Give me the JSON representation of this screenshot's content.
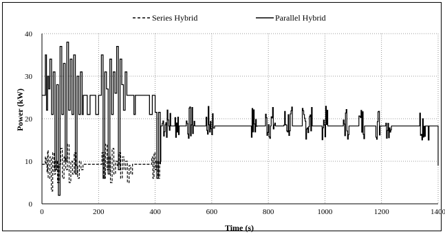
{
  "chart_data": {
    "type": "line",
    "title": "",
    "xlabel": "Time (s)",
    "ylabel": "Power (kW)",
    "xlim": [
      0,
      1400
    ],
    "ylim": [
      0,
      40
    ],
    "x_ticks": [
      0,
      200,
      400,
      600,
      800,
      1000,
      1200,
      1400
    ],
    "y_ticks": [
      0,
      10,
      20,
      30,
      40
    ],
    "grid": true,
    "grid_style": "dotted",
    "legend_position": "top-center",
    "series": [
      {
        "name": "Series Hybrid",
        "style": "dashed",
        "color": "#000000",
        "x": [
          0,
          10,
          12,
          15,
          18,
          20,
          22,
          28,
          33,
          38,
          43,
          48,
          55,
          60,
          66,
          72,
          78,
          84,
          90,
          96,
          102,
          108,
          114,
          120,
          126,
          132,
          138,
          145,
          160,
          180,
          200,
          212,
          218,
          224,
          230,
          236,
          242,
          248,
          254,
          260,
          266,
          272,
          278,
          284,
          290,
          296,
          302,
          308,
          314,
          320,
          340,
          360,
          380,
          388,
          392,
          396,
          400,
          404,
          410,
          416,
          419
        ],
        "y": [
          9.3,
          9.3,
          11,
          9.3,
          7.5,
          12.5,
          6,
          11,
          3,
          12,
          7,
          10,
          5,
          9.3,
          13,
          6,
          11,
          8,
          14,
          5,
          10,
          7,
          12,
          9,
          6,
          10,
          8,
          9.3,
          9.3,
          9.3,
          9.3,
          12,
          6,
          14,
          8,
          11,
          5,
          13,
          7,
          10,
          9,
          12,
          6,
          11,
          8,
          10,
          5,
          9,
          7,
          9.3,
          9.3,
          9.3,
          9.3,
          11,
          6,
          12,
          8,
          10,
          6,
          10,
          9.3
        ]
      },
      {
        "name": "Parallel Hybrid",
        "style": "solid",
        "color": "#000000",
        "x": [
          0,
          10,
          12,
          16,
          20,
          24,
          28,
          34,
          40,
          46,
          52,
          58,
          64,
          70,
          76,
          82,
          88,
          94,
          100,
          106,
          112,
          118,
          124,
          130,
          136,
          142,
          146,
          150,
          160,
          170,
          180,
          190,
          200,
          210,
          216,
          222,
          228,
          234,
          240,
          246,
          252,
          258,
          264,
          270,
          276,
          282,
          288,
          294,
          300,
          310,
          325,
          330,
          340,
          370,
          380,
          390,
          400,
          406,
          412,
          418,
          420,
          421
        ],
        "y": [
          25.5,
          25.5,
          35,
          22,
          30,
          27,
          34,
          21,
          31,
          8,
          28,
          2,
          37,
          21,
          33,
          10,
          38,
          22,
          34,
          21,
          35,
          7,
          30,
          21,
          31,
          21,
          25.5,
          25.5,
          21,
          25.5,
          25.5,
          21,
          25.5,
          35,
          6,
          31,
          27,
          7,
          34,
          21,
          31,
          26,
          37,
          8,
          34,
          28,
          22,
          31,
          25.5,
          25.5,
          21,
          25.5,
          25.5,
          25.5,
          21,
          25.5,
          21.5,
          6,
          21.5,
          10,
          18.3,
          18.3
        ]
      }
    ]
  }
}
